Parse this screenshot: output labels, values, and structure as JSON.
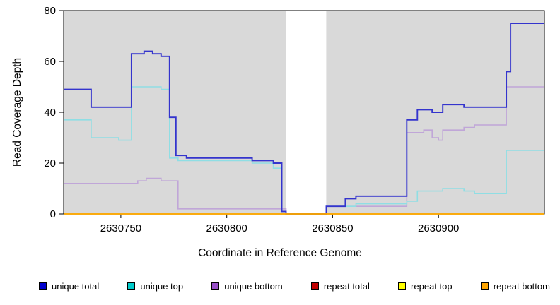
{
  "chart_data": {
    "type": "line",
    "step": true,
    "title": "",
    "xlabel": "Coordinate in Reference Genome",
    "ylabel": "Read Coverage Depth",
    "xlim": [
      2630723,
      2630950
    ],
    "ylim": [
      0,
      80
    ],
    "x_ticks": [
      2630750,
      2630800,
      2630850,
      2630900
    ],
    "y_ticks": [
      0,
      20,
      40,
      60,
      80
    ],
    "grid": false,
    "legend_position": "bottom",
    "plot_bg": "#D9D9D9",
    "gap_band": {
      "x0": 2630828,
      "x1": 2630847,
      "color": "#FFFFFF"
    },
    "series": [
      {
        "name": "unique total",
        "color": "#3434CD",
        "swatch": "#0000CC",
        "points": [
          [
            2630723,
            49
          ],
          [
            2630736,
            42
          ],
          [
            2630755,
            63
          ],
          [
            2630761,
            64
          ],
          [
            2630765,
            63
          ],
          [
            2630769,
            62
          ],
          [
            2630773,
            38
          ],
          [
            2630776,
            23
          ],
          [
            2630781,
            22
          ],
          [
            2630812,
            21
          ],
          [
            2630822,
            20
          ],
          [
            2630826,
            1
          ],
          [
            2630828,
            0
          ],
          [
            2630847,
            3
          ],
          [
            2630856,
            6
          ],
          [
            2630861,
            7
          ],
          [
            2630885,
            37
          ],
          [
            2630890,
            41
          ],
          [
            2630897,
            40
          ],
          [
            2630902,
            43
          ],
          [
            2630912,
            42
          ],
          [
            2630932,
            56
          ],
          [
            2630934,
            75
          ],
          [
            2630950,
            75
          ]
        ]
      },
      {
        "name": "unique top",
        "color": "#8FDEE4",
        "swatch": "#00CCCC",
        "points": [
          [
            2630723,
            37
          ],
          [
            2630736,
            30
          ],
          [
            2630749,
            29
          ],
          [
            2630755,
            50
          ],
          [
            2630769,
            49
          ],
          [
            2630773,
            22
          ],
          [
            2630777,
            21
          ],
          [
            2630812,
            20
          ],
          [
            2630822,
            18
          ],
          [
            2630826,
            1
          ],
          [
            2630828,
            0
          ],
          [
            2630847,
            3
          ],
          [
            2630861,
            4
          ],
          [
            2630885,
            5
          ],
          [
            2630890,
            9
          ],
          [
            2630902,
            10
          ],
          [
            2630912,
            9
          ],
          [
            2630917,
            8
          ],
          [
            2630932,
            25
          ],
          [
            2630950,
            25
          ]
        ]
      },
      {
        "name": "unique bottom",
        "color": "#C0A6D8",
        "swatch": "#9950C8",
        "points": [
          [
            2630723,
            12
          ],
          [
            2630758,
            13
          ],
          [
            2630762,
            14
          ],
          [
            2630769,
            13
          ],
          [
            2630777,
            2
          ],
          [
            2630828,
            0
          ],
          [
            2630847,
            3
          ],
          [
            2630885,
            32
          ],
          [
            2630893,
            33
          ],
          [
            2630897,
            30
          ],
          [
            2630900,
            29
          ],
          [
            2630902,
            33
          ],
          [
            2630912,
            34
          ],
          [
            2630917,
            35
          ],
          [
            2630932,
            50
          ],
          [
            2630950,
            50
          ]
        ]
      },
      {
        "name": "repeat total",
        "color": "#C00000",
        "swatch": "#C00000",
        "points": [
          [
            2630723,
            0
          ],
          [
            2630950,
            0
          ]
        ]
      },
      {
        "name": "repeat top",
        "color": "#FFFF00",
        "swatch": "#FFFF00",
        "points": [
          [
            2630723,
            0
          ],
          [
            2630950,
            0
          ]
        ]
      },
      {
        "name": "repeat bottom",
        "color": "#FFA500",
        "swatch": "#FFA500",
        "points": [
          [
            2630723,
            0
          ],
          [
            2630950,
            0
          ]
        ]
      }
    ]
  }
}
